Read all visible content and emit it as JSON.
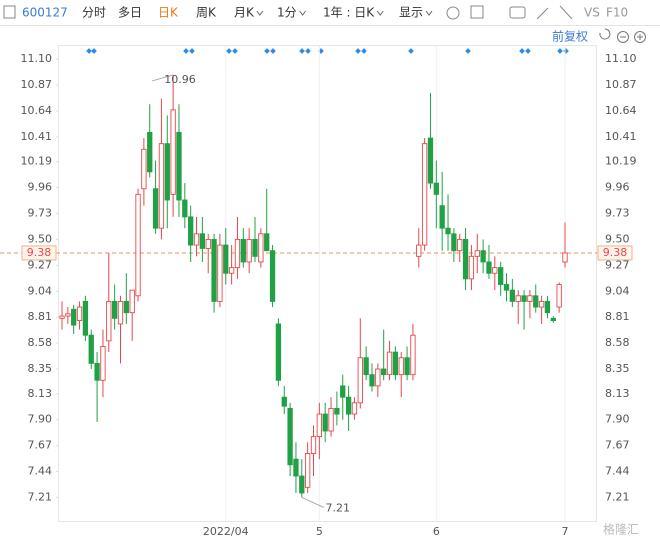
{
  "toolbar": {
    "code": "600127",
    "items": [
      "分时",
      "多日",
      "日K",
      "周K",
      "月K",
      "1分",
      "1年 : 日K",
      "显示"
    ],
    "vs": "VS",
    "f10": "F10"
  },
  "chart_data": {
    "type": "candlestick",
    "adjust_label": "前复权",
    "watermark": "格隆汇",
    "up_color": "#e8474a",
    "down_color": "#21a146",
    "categories": [
      null,
      null,
      null,
      null,
      null,
      null,
      null,
      null,
      null,
      null,
      null,
      null,
      null,
      null,
      null,
      null,
      null,
      null,
      null,
      null,
      null,
      null,
      null,
      null,
      null,
      null,
      null,
      null,
      "2022/04",
      null,
      null,
      null,
      null,
      null,
      null,
      null,
      null,
      null,
      null,
      null,
      null,
      null,
      null,
      null,
      "5",
      null,
      null,
      null,
      null,
      null,
      null,
      null,
      null,
      null,
      null,
      null,
      null,
      null,
      null,
      null,
      null,
      null,
      null,
      null,
      "6",
      null,
      null,
      null,
      null,
      null,
      null,
      null,
      null,
      null,
      null,
      null,
      null,
      null,
      null,
      null,
      null,
      null,
      null,
      null,
      null,
      null,
      "7"
    ],
    "open": [
      8.8,
      8.82,
      8.88,
      8.78,
      8.95,
      8.65,
      8.4,
      8.25,
      8.6,
      8.95,
      8.75,
      8.95,
      8.85,
      9.0,
      9.95,
      10.45,
      9.95,
      9.6,
      10.35,
      9.9,
      10.45,
      9.85,
      9.7,
      9.45,
      9.55,
      9.42,
      9.5,
      8.95,
      9.45,
      9.2,
      9.25,
      9.5,
      9.3,
      9.5,
      9.3,
      9.55,
      9.4,
      8.75,
      8.1,
      8.0,
      7.55,
      7.4,
      7.3,
      7.6,
      7.75,
      7.95,
      7.8,
      8.0,
      8.2,
      8.1,
      7.95,
      8.05,
      8.45,
      8.3,
      8.2,
      8.35,
      8.3,
      8.5,
      8.3,
      8.45,
      8.3,
      9.35,
      9.45,
      10.4,
      10.0,
      9.8,
      9.6,
      9.55,
      9.4,
      9.5,
      9.15,
      9.35,
      9.4,
      9.3,
      9.2,
      9.25,
      9.1,
      9.05,
      8.95,
      9.0,
      8.95,
      9.0,
      8.9,
      8.95,
      8.8,
      8.9,
      9.3
    ],
    "high": [
      8.95,
      8.9,
      8.92,
      8.95,
      9.0,
      8.7,
      8.5,
      8.7,
      9.38,
      9.1,
      9.0,
      9.2,
      9.05,
      9.95,
      10.4,
      10.7,
      10.2,
      10.75,
      10.6,
      10.96,
      10.7,
      10.0,
      9.8,
      9.7,
      9.7,
      9.55,
      9.55,
      9.55,
      9.6,
      9.45,
      9.7,
      9.6,
      9.6,
      9.7,
      9.6,
      9.95,
      9.45,
      8.8,
      8.2,
      8.05,
      7.7,
      7.55,
      7.7,
      7.85,
      8.05,
      8.05,
      8.1,
      8.15,
      8.3,
      8.2,
      8.1,
      8.8,
      8.55,
      8.4,
      8.4,
      8.7,
      8.6,
      8.55,
      8.5,
      8.55,
      8.75,
      9.6,
      10.4,
      10.8,
      10.2,
      10.1,
      9.9,
      9.6,
      9.55,
      9.6,
      9.45,
      9.55,
      9.5,
      9.45,
      9.35,
      9.3,
      9.2,
      9.15,
      9.05,
      9.05,
      9.05,
      9.1,
      9.0,
      9.0,
      8.82,
      9.12,
      9.65
    ],
    "low": [
      8.7,
      8.75,
      8.66,
      8.7,
      8.6,
      8.35,
      7.88,
      8.1,
      8.5,
      8.7,
      8.4,
      8.75,
      8.6,
      8.95,
      9.8,
      10.05,
      9.55,
      9.5,
      9.6,
      9.7,
      9.7,
      9.6,
      9.3,
      9.35,
      9.3,
      9.2,
      8.85,
      8.9,
      9.1,
      9.1,
      9.15,
      9.25,
      9.2,
      9.3,
      9.25,
      9.4,
      8.9,
      8.2,
      7.95,
      7.4,
      7.25,
      7.21,
      7.25,
      7.4,
      7.55,
      7.7,
      7.75,
      7.85,
      7.9,
      7.8,
      7.9,
      8.0,
      8.25,
      8.15,
      8.1,
      8.25,
      8.25,
      8.25,
      8.1,
      8.25,
      8.25,
      9.25,
      9.4,
      9.95,
      9.6,
      9.4,
      9.4,
      9.3,
      9.3,
      9.05,
      9.05,
      9.2,
      9.2,
      9.15,
      9.05,
      9.0,
      8.95,
      8.9,
      8.75,
      8.7,
      8.8,
      8.85,
      8.75,
      8.8,
      8.76,
      8.85,
      9.25
    ],
    "close": [
      8.82,
      8.84,
      8.74,
      8.9,
      8.65,
      8.4,
      8.25,
      8.55,
      8.95,
      8.8,
      8.95,
      8.85,
      9.05,
      9.9,
      10.3,
      10.1,
      9.6,
      10.35,
      9.85,
      10.65,
      9.85,
      9.7,
      9.45,
      9.55,
      9.42,
      9.5,
      8.95,
      9.45,
      9.2,
      9.25,
      9.5,
      9.3,
      9.5,
      9.35,
      9.55,
      9.4,
      8.95,
      8.25,
      8.02,
      7.5,
      7.4,
      7.25,
      7.6,
      7.75,
      7.95,
      7.8,
      8.0,
      7.95,
      8.1,
      7.95,
      8.05,
      8.45,
      8.3,
      8.2,
      8.35,
      8.3,
      8.5,
      8.3,
      8.45,
      8.3,
      8.65,
      9.45,
      10.35,
      10.0,
      9.9,
      9.6,
      9.55,
      9.4,
      9.5,
      9.15,
      9.35,
      9.4,
      9.3,
      9.2,
      9.25,
      9.1,
      9.05,
      8.95,
      9.0,
      8.95,
      9.0,
      8.9,
      8.95,
      8.85,
      8.78,
      9.1,
      9.38
    ],
    "last_price": 9.38,
    "high_mark": {
      "index": 19,
      "label": 10.96
    },
    "low_mark": {
      "index": 41,
      "label": 7.21
    },
    "ylim": [
      7.01,
      11.27
    ],
    "yticks": [
      {
        "value": 11.1,
        "label": "11.10"
      },
      10.87,
      10.64,
      10.41,
      10.19,
      9.96,
      9.73,
      {
        "value": 9.5,
        "label": "9.50"
      },
      9.27,
      9.04,
      8.81,
      8.58,
      8.35,
      8.13,
      {
        "value": 7.9,
        "label": "7.90"
      },
      7.67,
      7.44,
      7.21
    ]
  }
}
